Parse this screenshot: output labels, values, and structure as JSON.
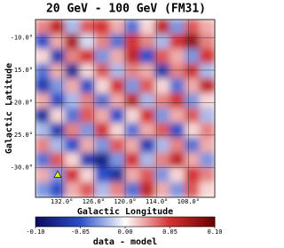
{
  "chart_data": {
    "type": "heatmap",
    "title": "20 GeV - 100 GeV (FM31)",
    "x_label": "Galactic Longitude",
    "y_label": "Galactic Latitude",
    "colorbar_label": "data - model",
    "xlim": [
      137,
      103
    ],
    "ylim": [
      -34.6,
      -7.2
    ],
    "xticks": [
      {
        "value": 132,
        "label": "132.0°"
      },
      {
        "value": 126,
        "label": "126.0°"
      },
      {
        "value": 120,
        "label": "120.0°"
      },
      {
        "value": 114,
        "label": "114.0°"
      },
      {
        "value": 108,
        "label": "108.0°"
      }
    ],
    "yticks": [
      {
        "value": -10,
        "label": "-10.0°"
      },
      {
        "value": -15,
        "label": "-15.0°"
      },
      {
        "value": -20,
        "label": "-20.0°"
      },
      {
        "value": -25,
        "label": "-25.0°"
      },
      {
        "value": -30,
        "label": "-30.0°"
      }
    ],
    "clim": [
      -0.1,
      0.1
    ],
    "cticks": [
      {
        "value": -0.1,
        "label": "-0.10"
      },
      {
        "value": -0.05,
        "label": "-0.05"
      },
      {
        "value": 0,
        "label": "0.00"
      },
      0.05,
      {
        "value": 0.1,
        "label": "0.10"
      }
    ],
    "colormap": [
      "#0b0b5c",
      "#2a4fc8",
      "#ffffff",
      "#d43030",
      "#6b0000"
    ],
    "grid": true,
    "values": [
      [
        0.03,
        0.06,
        -0.02,
        0.04,
        0.05,
        0.02,
        -0.04,
        0.01,
        0.06,
        -0.03,
        0.04,
        0.02
      ],
      [
        -0.05,
        0.02,
        0.07,
        -0.01,
        0.03,
        -0.04,
        0.05,
        0.03,
        -0.02,
        0.05,
        0.08,
        0.03
      ],
      [
        0.01,
        -0.06,
        0.03,
        0.05,
        -0.03,
        0.02,
        0.06,
        -0.05,
        0.04,
        0.02,
        -0.03,
        0.05
      ],
      [
        -0.04,
        0.02,
        -0.07,
        0.01,
        0.04,
        -0.02,
        0.03,
        0.02,
        -0.06,
        0.03,
        0.05,
        -0.02
      ],
      [
        -0.06,
        -0.03,
        0.02,
        -0.05,
        0.01,
        0.05,
        -0.03,
        0.04,
        0.01,
        -0.04,
        0.02,
        0.06
      ],
      [
        0.02,
        -0.05,
        -0.02,
        0.03,
        -0.04,
        0.02,
        0.06,
        -0.02,
        0.03,
        0.05,
        -0.03,
        0.01
      ],
      [
        -0.07,
        0.01,
        -0.04,
        0.04,
        0.02,
        -0.05,
        0.01,
        0.05,
        -0.03,
        0.02,
        0.04,
        -0.02
      ],
      [
        -0.02,
        -0.06,
        0.03,
        -0.03,
        0.05,
        0.01,
        -0.04,
        0.02,
        0.04,
        -0.05,
        0.01,
        0.03
      ],
      [
        0.03,
        -0.02,
        -0.05,
        0.02,
        -0.03,
        0.04,
        0.02,
        -0.06,
        -0.02,
        0.03,
        -0.04,
        0.02
      ],
      [
        -0.04,
        0.04,
        0.01,
        -0.06,
        -0.08,
        -0.03,
        0.05,
        -0.02,
        0.03,
        0.06,
        0.02,
        -0.03
      ],
      [
        0.02,
        -0.03,
        0.05,
        0.01,
        -0.05,
        -0.07,
        0.02,
        0.04,
        -0.03,
        0.01,
        0.05,
        0.03
      ],
      [
        -0.03,
        -0.05,
        0.02,
        0.04,
        -0.02,
        0.03,
        -0.04,
        0.06,
        0.02,
        -0.03,
        0.04,
        0.01
      ]
    ],
    "markers": [
      {
        "x": 132.8,
        "y": -31.1,
        "color": "#f0e020"
      }
    ]
  }
}
